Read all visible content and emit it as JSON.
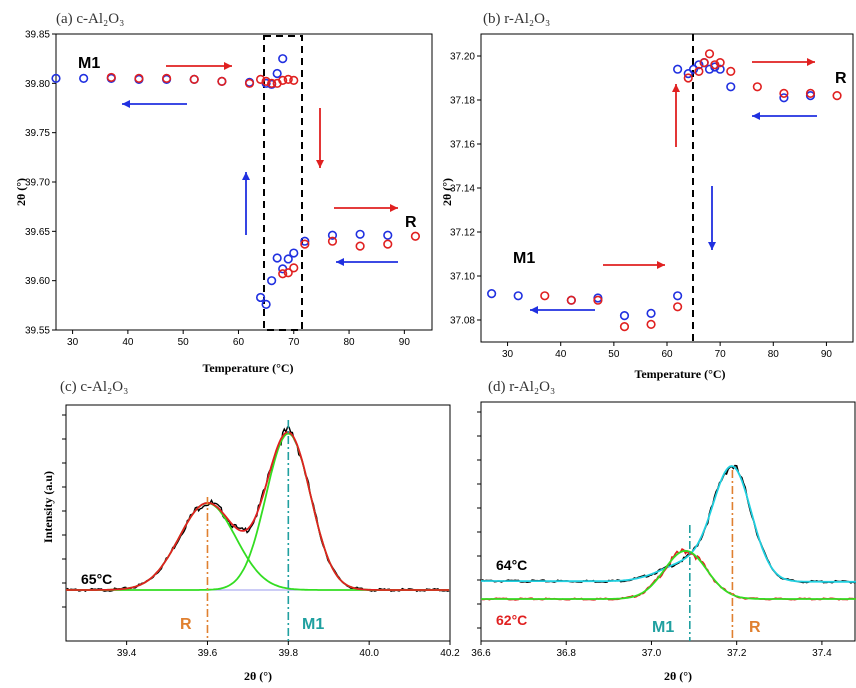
{
  "chart_data": [
    {
      "panel": "a",
      "type": "scatter",
      "title": "(a) c-Al₂O₃",
      "xlabel": "Temperature (°C)",
      "ylabel": "2θ (°)",
      "xlim": [
        27,
        95
      ],
      "ylim": [
        39.55,
        39.85
      ],
      "xticks": [
        30,
        40,
        50,
        60,
        70,
        80,
        90
      ],
      "yticks": [
        39.55,
        39.6,
        39.65,
        39.7,
        39.75,
        39.8,
        39.85
      ],
      "series": [
        {
          "color": "#2030e0",
          "points": [
            [
              27,
              39.805
            ],
            [
              32,
              39.805
            ],
            [
              37,
              39.805
            ],
            [
              42,
              39.804
            ],
            [
              47,
              39.804
            ],
            [
              52,
              39.804
            ],
            [
              57,
              39.802
            ],
            [
              62,
              39.801
            ],
            [
              64,
              39.583
            ],
            [
              65,
              39.576
            ],
            [
              66,
              39.6
            ],
            [
              67,
              39.623
            ],
            [
              68,
              39.612
            ],
            [
              69,
              39.622
            ],
            [
              70,
              39.628
            ],
            [
              72,
              39.64
            ],
            [
              77,
              39.646
            ],
            [
              82,
              39.647
            ],
            [
              87,
              39.646
            ],
            [
              65,
              39.8
            ],
            [
              66,
              39.799
            ],
            [
              67,
              39.81
            ],
            [
              68,
              39.825
            ]
          ]
        },
        {
          "color": "#e02020",
          "points": [
            [
              37,
              39.806
            ],
            [
              42,
              39.805
            ],
            [
              47,
              39.805
            ],
            [
              52,
              39.804
            ],
            [
              57,
              39.802
            ],
            [
              62,
              39.8
            ],
            [
              64,
              39.804
            ],
            [
              65,
              39.802
            ],
            [
              66,
              39.8
            ],
            [
              67,
              39.8
            ],
            [
              68,
              39.803
            ],
            [
              69,
              39.804
            ],
            [
              70,
              39.803
            ],
            [
              68,
              39.607
            ],
            [
              69,
              39.608
            ],
            [
              70,
              39.613
            ],
            [
              72,
              39.637
            ],
            [
              77,
              39.64
            ],
            [
              82,
              39.635
            ],
            [
              87,
              39.637
            ],
            [
              92,
              39.645
            ]
          ]
        }
      ],
      "annotations": [
        "M1",
        "R"
      ]
    },
    {
      "panel": "b",
      "type": "scatter",
      "title": "(b) r-Al₂O₃",
      "xlabel": "Temperature (°C)",
      "ylabel": "2θ (°)",
      "xlim": [
        25,
        95
      ],
      "ylim": [
        37.07,
        37.21
      ],
      "xticks": [
        30,
        40,
        50,
        60,
        70,
        80,
        90
      ],
      "yticks": [
        37.08,
        37.1,
        37.12,
        37.14,
        37.16,
        37.18,
        37.2
      ],
      "series": [
        {
          "color": "#2030e0",
          "points": [
            [
              27,
              37.092
            ],
            [
              32,
              37.091
            ],
            [
              42,
              37.089
            ],
            [
              47,
              37.09
            ],
            [
              52,
              37.082
            ],
            [
              57,
              37.083
            ],
            [
              62,
              37.091
            ],
            [
              62,
              37.194
            ],
            [
              64,
              37.192
            ],
            [
              65,
              37.194
            ],
            [
              66,
              37.196
            ],
            [
              67,
              37.197
            ],
            [
              68,
              37.194
            ],
            [
              69,
              37.195
            ],
            [
              70,
              37.194
            ],
            [
              72,
              37.186
            ],
            [
              82,
              37.181
            ],
            [
              87,
              37.182
            ]
          ]
        },
        {
          "color": "#e02020",
          "points": [
            [
              37,
              37.091
            ],
            [
              42,
              37.089
            ],
            [
              47,
              37.089
            ],
            [
              52,
              37.077
            ],
            [
              57,
              37.078
            ],
            [
              62,
              37.086
            ],
            [
              64,
              37.19
            ],
            [
              66,
              37.193
            ],
            [
              67,
              37.197
            ],
            [
              68,
              37.201
            ],
            [
              69,
              37.196
            ],
            [
              70,
              37.197
            ],
            [
              72,
              37.193
            ],
            [
              77,
              37.186
            ],
            [
              82,
              37.183
            ],
            [
              87,
              37.183
            ],
            [
              92,
              37.182
            ]
          ]
        }
      ],
      "annotations": [
        "M1",
        "R"
      ]
    },
    {
      "panel": "c",
      "type": "line",
      "title": "(c) c-Al₂O₃",
      "xlabel": "2θ (°)",
      "ylabel": "Intensity (a.u)",
      "xlim": [
        39.25,
        40.2
      ],
      "xticks": [
        39.4,
        39.6,
        39.8,
        40.0,
        40.2
      ],
      "temperature_label": "65°C",
      "phase_lines": [
        {
          "label": "R",
          "x": 39.6,
          "color": "#e08030"
        },
        {
          "label": "M1",
          "x": 39.8,
          "color": "#20a0a0"
        }
      ],
      "peaks": [
        {
          "center": 39.6,
          "amplitude": 0.55,
          "width": 0.07
        },
        {
          "center": 39.8,
          "amplitude": 0.99,
          "width": 0.055
        }
      ]
    },
    {
      "panel": "d",
      "type": "line",
      "title": "(d) r-Al₂O₃",
      "xlabel": "2θ (°)",
      "ylabel": "",
      "xlim": [
        36.6,
        37.48
      ],
      "xticks": [
        36.6,
        36.8,
        37.0,
        37.2,
        37.4
      ],
      "series_labels": [
        {
          "label": "64°C",
          "color": "#000000"
        },
        {
          "label": "62°C",
          "color": "#e02020"
        }
      ],
      "phase_lines": [
        {
          "label": "M1",
          "x": 37.09,
          "color": "#20a0a0"
        },
        {
          "label": "R",
          "x": 37.19,
          "color": "#e08030"
        }
      ],
      "peaks_64": [
        {
          "center": 37.19,
          "amplitude": 0.95,
          "width": 0.045
        },
        {
          "center": 37.08,
          "amplitude": 0.15,
          "width": 0.06
        }
      ],
      "peaks_62": [
        {
          "center": 37.08,
          "amplitude": 0.56,
          "width": 0.05
        }
      ]
    }
  ]
}
